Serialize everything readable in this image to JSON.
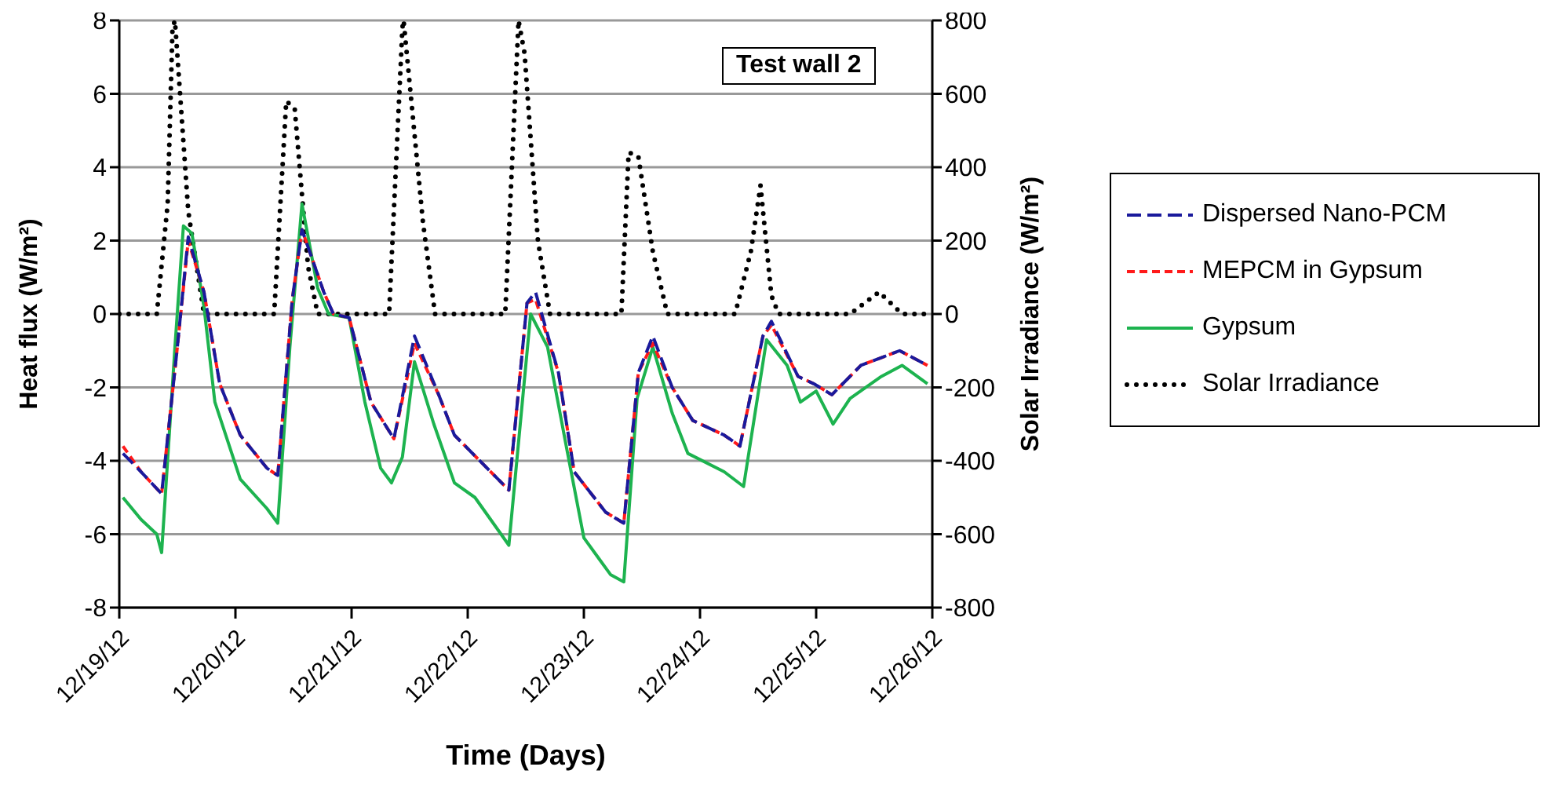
{
  "chart_data": {
    "type": "line",
    "xlabel": "Time (Days)",
    "ylabel": "Heat flux (W/m²)",
    "y2label": "Solar Irradiance (W/m²)",
    "annotations": [
      "Test wall 2"
    ],
    "xlim": [
      "--12-19",
      "--12-26"
    ],
    "xticks": [
      {
        "value": "--12-19",
        "label": "12/19/12"
      },
      {
        "value": "--12-20",
        "label": "12/20/12"
      },
      {
        "value": "--12-21",
        "label": "12/21/12"
      },
      {
        "value": "--12-22",
        "label": "12/22/12"
      },
      {
        "value": "--12-23",
        "label": "12/23/12"
      },
      {
        "value": "--12-24",
        "label": "12/24/12"
      },
      {
        "value": "--12-25",
        "label": "12/25/12"
      },
      {
        "value": "--12-26",
        "label": "12/26/12"
      }
    ],
    "ylim": [
      -8,
      8
    ],
    "yticks": [
      -8,
      -6,
      -4,
      -2,
      0,
      2,
      4,
      6,
      8
    ],
    "y2lim": [
      -800,
      800
    ],
    "y2ticks": [
      -800,
      -600,
      -400,
      -200,
      0,
      200,
      400,
      600,
      800
    ],
    "grid": "y",
    "legend": "right",
    "marker": "none",
    "series": [
      {
        "name": "Dispersed Nano-PCM",
        "color": "#1a1a9c",
        "line_style": "dashed",
        "x": [
          "--12-19T00:45",
          "--12-19T04:30",
          "--12-19T08:45",
          "--12-19T12:00",
          "--12-19T14:15",
          "--12-19T17:30",
          "--12-19T20:45",
          "--12-20T01:00",
          "--12-20T06:30",
          "--12-20T08:45",
          "--12-20T11:45",
          "--12-20T13:45",
          "--12-20T18:15",
          "--12-20T20:15",
          "--12-20T23:30",
          "--12-21T04:00",
          "--12-21T08:45",
          "--12-21T13:00",
          "--12-21T18:00",
          "--12-21T21:15",
          "--12-22T08:30",
          "--12-22T12:15",
          "--12-22T14:00",
          "--12-22T18:45",
          "--12-22T22:00",
          "--12-23T04:30",
          "--12-23T08:15",
          "--12-23T11:15",
          "--12-23T14:15",
          "--12-23T18:15",
          "--12-23T22:30",
          "--12-24T05:00",
          "--12-24T08:15",
          "--12-24T13:00",
          "--12-24T14:45",
          "--12-24T20:15",
          "--12-24T23:30",
          "--12-25T03:15",
          "--12-25T09:15",
          "--12-25T17:15",
          "--12-25T23:00"
        ],
        "values": [
          -3.8,
          -4.3,
          -4.9,
          -0.9,
          2.1,
          0.6,
          -1.9,
          -3.3,
          -4.2,
          -4.4,
          0.4,
          2.3,
          0.6,
          0,
          -0.1,
          -2.4,
          -3.4,
          -0.6,
          -2.2,
          -3.3,
          -4.8,
          0.3,
          0.6,
          -1.6,
          -4.3,
          -5.4,
          -5.7,
          -1.6,
          -0.6,
          -2.0,
          -2.9,
          -3.3,
          -3.6,
          -0.6,
          -0.2,
          -1.7,
          -1.9,
          -2.2,
          -1.4,
          -1.0,
          -1.4
        ]
      },
      {
        "name": "MEPCM in Gypsum",
        "color": "#ff1a1a",
        "line_style": "dashed",
        "x": [
          "--12-19T00:45",
          "--12-19T04:30",
          "--12-19T08:45",
          "--12-19T12:00",
          "--12-19T14:15",
          "--12-19T17:30",
          "--12-19T20:45",
          "--12-20T01:00",
          "--12-20T06:30",
          "--12-20T08:45",
          "--12-20T11:45",
          "--12-20T13:45",
          "--12-20T18:15",
          "--12-20T20:15",
          "--12-20T23:30",
          "--12-21T04:00",
          "--12-21T08:45",
          "--12-21T13:00",
          "--12-21T18:00",
          "--12-21T21:15",
          "--12-22T08:30",
          "--12-22T12:15",
          "--12-22T14:00",
          "--12-22T18:45",
          "--12-22T22:00",
          "--12-23T04:30",
          "--12-23T08:15",
          "--12-23T11:15",
          "--12-23T14:15",
          "--12-23T18:15",
          "--12-23T22:30",
          "--12-24T05:00",
          "--12-24T08:15",
          "--12-24T13:00",
          "--12-24T14:45",
          "--12-24T20:15",
          "--12-24T23:30",
          "--12-25T03:15",
          "--12-25T09:15",
          "--12-25T17:15",
          "--12-25T23:00"
        ],
        "values": [
          -3.6,
          -4.3,
          -4.9,
          -0.9,
          2.0,
          0.6,
          -1.9,
          -3.3,
          -4.2,
          -4.4,
          0.4,
          2.3,
          0.6,
          0,
          -0.1,
          -2.4,
          -3.4,
          -0.8,
          -2.2,
          -3.3,
          -4.8,
          0.3,
          0.4,
          -1.6,
          -4.3,
          -5.4,
          -5.7,
          -1.6,
          -0.8,
          -2.0,
          -2.9,
          -3.3,
          -3.6,
          -0.6,
          -0.3,
          -1.7,
          -1.9,
          -2.2,
          -1.4,
          -1.0,
          -1.4
        ]
      },
      {
        "name": "Gypsum",
        "color": "#1db34f",
        "line_style": "solid",
        "x": [
          "--12-19T00:45",
          "--12-19T04:30",
          "--12-19T07:45",
          "--12-19T08:45",
          "--12-19T11:30",
          "--12-19T13:15",
          "--12-19T15:00",
          "--12-19T17:30",
          "--12-19T19:45",
          "--12-20T01:00",
          "--12-20T06:30",
          "--12-20T08:45",
          "--12-20T11:15",
          "--12-20T13:45",
          "--12-20T17:00",
          "--12-20T19:15",
          "--12-20T23:30",
          "--12-21T02:45",
          "--12-21T06:00",
          "--12-21T08:15",
          "--12-21T10:30",
          "--12-21T13:00",
          "--12-21T17:00",
          "--12-21T21:15",
          "--12-22T01:30",
          "--12-22T08:30",
          "--12-22T13:00",
          "--12-22T16:30",
          "--12-22T20:30",
          "--12-23T00:00",
          "--12-23T05:30",
          "--12-23T08:15",
          "--12-23T11:00",
          "--12-23T14:15",
          "--12-23T18:15",
          "--12-23T21:30",
          "--12-24T05:00",
          "--12-24T09:00",
          "--12-24T13:45",
          "--12-24T18:00",
          "--12-24T20:45",
          "--12-25T00:00",
          "--12-25T03:30",
          "--12-25T07:00",
          "--12-25T13:30",
          "--12-25T17:45",
          "--12-25T23:00"
        ],
        "values": [
          -5.0,
          -5.6,
          -6.0,
          -6.5,
          -0.9,
          2.4,
          2.2,
          0.2,
          -2.4,
          -4.5,
          -5.3,
          -5.7,
          -0.9,
          3.0,
          0.7,
          0,
          -0.1,
          -2.4,
          -4.2,
          -4.6,
          -3.9,
          -1.3,
          -3.0,
          -4.6,
          -5.0,
          -6.3,
          0,
          -0.9,
          -3.7,
          -6.1,
          -7.1,
          -7.3,
          -2.3,
          -0.9,
          -2.7,
          -3.8,
          -4.3,
          -4.7,
          -0.7,
          -1.4,
          -2.4,
          -2.1,
          -3.0,
          -2.3,
          -1.7,
          -1.4,
          -1.9
        ]
      },
      {
        "name": "Solar Irradiance",
        "color": "#000000",
        "line_style": "dotted",
        "axis": "y2",
        "x": [
          "--12-19T00:00",
          "--12-19T07:45",
          "--12-19T10:00",
          "--12-19T11:00",
          "--12-19T11:30",
          "--12-19T14:15",
          "--12-19T17:30",
          "--12-20T08:00",
          "--12-20T10:30",
          "--12-20T12:15",
          "--12-20T15:00",
          "--12-20T17:00",
          "--12-21T07:45",
          "--12-21T10:30",
          "--12-21T10:45",
          "--12-21T14:45",
          "--12-21T17:15",
          "--12-22T07:45",
          "--12-22T10:30",
          "--12-22T11:45",
          "--12-22T14:30",
          "--12-22T17:00",
          "--12-23T07:45",
          "--12-23T09:15",
          "--12-23T11:15",
          "--12-23T14:15",
          "--12-23T17:15",
          "--12-24T07:15",
          "--12-24T10:30",
          "--12-24T12:30",
          "--12-24T14:45",
          "--12-24T16:15",
          "--12-25T07:00",
          "--12-25T13:00",
          "--12-25T17:45",
          "--12-26T00:00"
        ],
        "values": [
          0,
          0,
          300,
          780,
          800,
          280,
          0,
          0,
          580,
          560,
          130,
          0,
          0,
          780,
          800,
          250,
          0,
          0,
          800,
          710,
          200,
          0,
          0,
          440,
          430,
          170,
          0,
          0,
          170,
          350,
          50,
          0,
          0,
          60,
          0,
          0
        ]
      }
    ]
  }
}
